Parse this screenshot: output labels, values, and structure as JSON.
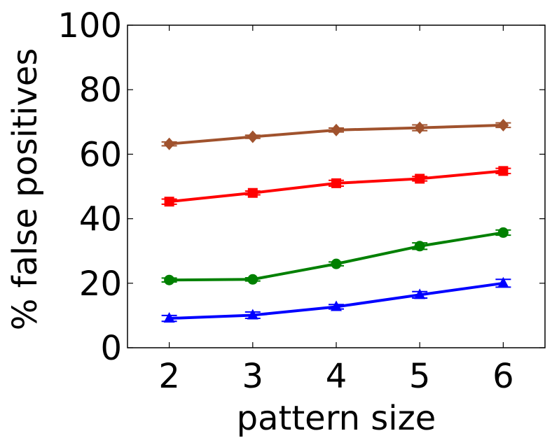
{
  "chart_data": {
    "type": "line",
    "title": "",
    "xlabel": "pattern size",
    "ylabel": "% false positives",
    "x": [
      2,
      3,
      4,
      5,
      6
    ],
    "xlim": [
      1.5,
      6.5
    ],
    "ylim": [
      0,
      100
    ],
    "xticks": [
      2,
      3,
      4,
      5,
      6
    ],
    "yticks": [
      0,
      20,
      40,
      60,
      80,
      100
    ],
    "grid": false,
    "legend": "none",
    "series": [
      {
        "marker": "diamond",
        "color": "#a0522d",
        "values": [
          63.2,
          65.4,
          67.5,
          68.2,
          69.0
        ],
        "errors": [
          0.6,
          0.5,
          0.6,
          0.9,
          0.7
        ]
      },
      {
        "marker": "square",
        "color": "#ff0000",
        "values": [
          45.3,
          48.0,
          51.0,
          52.4,
          54.8
        ],
        "errors": [
          0.8,
          0.6,
          0.9,
          0.7,
          0.8
        ]
      },
      {
        "marker": "circle",
        "color": "#008000",
        "values": [
          21.0,
          21.2,
          26.0,
          31.5,
          35.7
        ],
        "errors": [
          0.6,
          0.5,
          0.6,
          1.0,
          0.8
        ]
      },
      {
        "marker": "triangle",
        "color": "#0000ff",
        "values": [
          9.1,
          10.1,
          12.7,
          16.4,
          20.0
        ],
        "errors": [
          0.9,
          1.0,
          0.7,
          1.0,
          1.2
        ]
      }
    ]
  }
}
